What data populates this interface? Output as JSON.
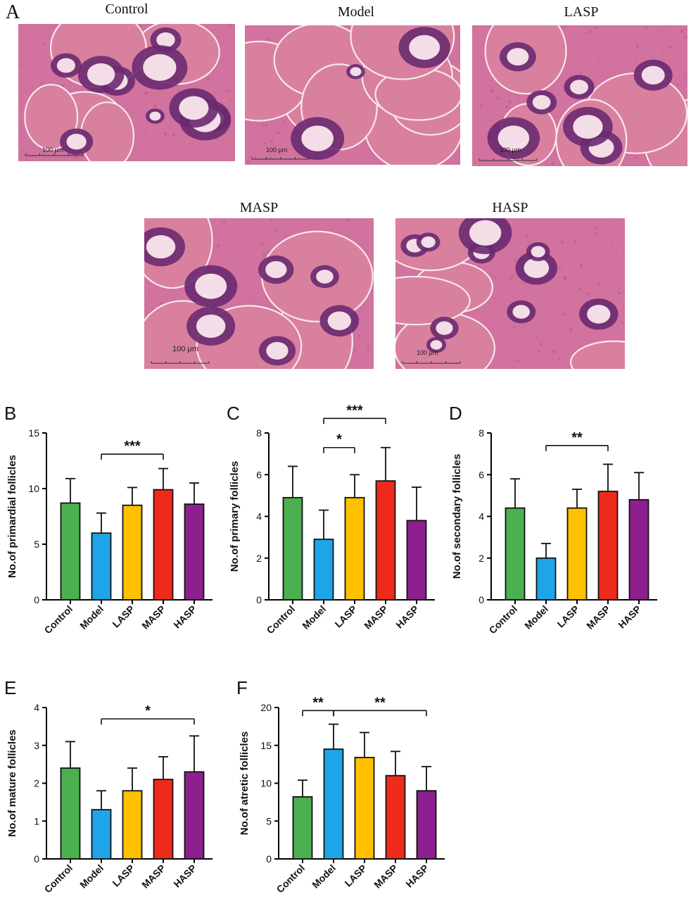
{
  "panel_a": {
    "letter": "A",
    "images": [
      {
        "title": "Control",
        "scale": "100 μm",
        "style": "dense"
      },
      {
        "title": "Model",
        "scale": "100 μm",
        "style": "cyst"
      },
      {
        "title": "LASP",
        "scale": "100 μm",
        "style": "mixed"
      },
      {
        "title": "MASP",
        "scale": "100 μm",
        "style": "mixed"
      },
      {
        "title": "HASP",
        "scale": "100 μm",
        "style": "dense"
      }
    ]
  },
  "colors": {
    "Control": "#4caf50",
    "Model": "#1ea5e8",
    "LASP": "#ffc000",
    "MASP": "#ee2a1b",
    "HASP": "#8e1f8e",
    "tissue_bg": "#d2729e",
    "tissue_dark": "#6a2a70",
    "lumen": "#f3dde6"
  },
  "chart_data": [
    {
      "letter": "B",
      "type": "bar",
      "ylabel": "No.of primardial follicles",
      "categories": [
        "Control",
        "Model",
        "LASP",
        "MASP",
        "HASP"
      ],
      "values": [
        8.7,
        6.0,
        8.5,
        9.9,
        8.6
      ],
      "errors": [
        2.2,
        1.8,
        1.6,
        1.9,
        1.9
      ],
      "ylim": [
        0,
        15
      ],
      "yticks": [
        "0",
        "5",
        "10",
        "15"
      ],
      "sig": [
        {
          "from": 1,
          "to": 3,
          "label": "***",
          "y": 13.1
        }
      ]
    },
    {
      "letter": "C",
      "type": "bar",
      "ylabel": "No.of primary follicles",
      "categories": [
        "Control",
        "Model",
        "LASP",
        "MASP",
        "HASP"
      ],
      "values": [
        4.9,
        2.9,
        4.9,
        5.7,
        3.8
      ],
      "errors": [
        1.5,
        1.4,
        1.1,
        1.6,
        1.6
      ],
      "ylim": [
        0,
        8
      ],
      "yticks": [
        "0",
        "2",
        "4",
        "6",
        "8"
      ],
      "sig": [
        {
          "from": 1,
          "to": 2,
          "label": "*",
          "y": 7.3
        },
        {
          "from": 1,
          "to": 3,
          "label": "***",
          "y": 8.7
        }
      ]
    },
    {
      "letter": "D",
      "type": "bar",
      "ylabel": "No.of secondary follicles",
      "categories": [
        "Control",
        "Model",
        "LASP",
        "MASP",
        "HASP"
      ],
      "values": [
        4.4,
        2.0,
        4.4,
        5.2,
        4.8
      ],
      "errors": [
        1.4,
        0.7,
        0.9,
        1.3,
        1.3
      ],
      "ylim": [
        0,
        8
      ],
      "yticks": [
        "0",
        "2",
        "4",
        "6",
        "8"
      ],
      "sig": [
        {
          "from": 1,
          "to": 3,
          "label": "**",
          "y": 7.4
        }
      ]
    },
    {
      "letter": "E",
      "type": "bar",
      "ylabel": "No.of mature follicles",
      "categories": [
        "Control",
        "Model",
        "LASP",
        "MASP",
        "HASP"
      ],
      "values": [
        2.4,
        1.3,
        1.8,
        2.1,
        2.3
      ],
      "errors": [
        0.7,
        0.5,
        0.6,
        0.6,
        0.95
      ],
      "ylim": [
        0,
        4
      ],
      "yticks": [
        "0",
        "1",
        "2",
        "3",
        "4"
      ],
      "sig": [
        {
          "from": 1,
          "to": 4,
          "label": "*",
          "y": 3.7
        }
      ]
    },
    {
      "letter": "F",
      "type": "bar",
      "ylabel": "No.of atretic follicles",
      "categories": [
        "Control",
        "Model",
        "LASP",
        "MASP",
        "HASP"
      ],
      "values": [
        8.2,
        14.5,
        13.4,
        11.0,
        9.0
      ],
      "errors": [
        2.2,
        3.3,
        3.3,
        3.2,
        3.2
      ],
      "ylim": [
        0,
        20
      ],
      "yticks": [
        "0",
        "5",
        "10",
        "15",
        "20"
      ],
      "sig": [
        {
          "from": 0,
          "to": 1,
          "label": "**",
          "y": 19.6
        },
        {
          "from": 1,
          "to": 4,
          "label": "**",
          "y": 19.6
        }
      ]
    }
  ]
}
